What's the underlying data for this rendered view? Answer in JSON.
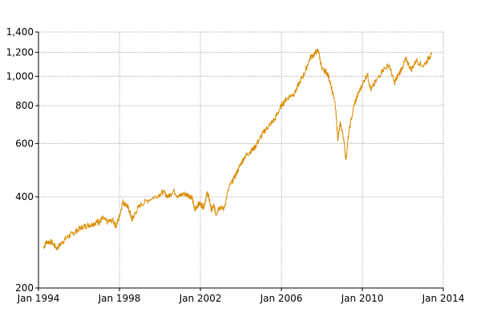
{
  "chart_data": {
    "type": "line",
    "title": "",
    "xlabel": "",
    "ylabel": "",
    "y_scale": "log",
    "ylim": [
      200,
      1400
    ],
    "xlim": [
      "1994-01-01",
      "2014-01-01"
    ],
    "grid": true,
    "line_color": "#d98c00",
    "x_ticks": [
      {
        "label": "Jan 1994",
        "date": "1994-01-01"
      },
      {
        "label": "Jan 1998",
        "date": "1998-01-01"
      },
      {
        "label": "Jan 2002",
        "date": "2002-01-01"
      },
      {
        "label": "Jan 2006",
        "date": "2006-01-01"
      },
      {
        "label": "Jan 2010",
        "date": "2010-01-01"
      },
      {
        "label": "Jan 2014",
        "date": "2014-01-01"
      }
    ],
    "y_ticks": [
      {
        "label": "200",
        "value": 200
      },
      {
        "label": "400",
        "value": 400
      },
      {
        "label": "600",
        "value": 600
      },
      {
        "label": "800",
        "value": 800
      },
      {
        "label": "1,000",
        "value": 1000
      },
      {
        "label": "1,200",
        "value": 1200
      },
      {
        "label": "1,400",
        "value": 1400
      }
    ],
    "series": [
      {
        "points": [
          [
            "1994-04-01",
            272
          ],
          [
            "1994-06-01",
            285
          ],
          [
            "1994-09-01",
            283
          ],
          [
            "1994-12-01",
            270
          ],
          [
            "1995-03-01",
            283
          ],
          [
            "1995-06-01",
            294
          ],
          [
            "1995-09-01",
            302
          ],
          [
            "1995-12-01",
            310
          ],
          [
            "1996-03-01",
            318
          ],
          [
            "1996-06-01",
            322
          ],
          [
            "1996-09-01",
            325
          ],
          [
            "1996-12-01",
            332
          ],
          [
            "1997-01-01",
            328
          ],
          [
            "1997-03-01",
            340
          ],
          [
            "1997-06-01",
            330
          ],
          [
            "1997-09-01",
            335
          ],
          [
            "1997-11-01",
            320
          ],
          [
            "1998-01-01",
            345
          ],
          [
            "1998-03-01",
            385
          ],
          [
            "1998-05-01",
            378
          ],
          [
            "1998-07-01",
            360
          ],
          [
            "1998-08-15",
            335
          ],
          [
            "1998-10-01",
            350
          ],
          [
            "1999-01-01",
            375
          ],
          [
            "1999-06-01",
            390
          ],
          [
            "1999-12-01",
            405
          ],
          [
            "2000-03-01",
            415
          ],
          [
            "2000-06-01",
            400
          ],
          [
            "2000-09-01",
            420
          ],
          [
            "2000-12-01",
            400
          ],
          [
            "2001-03-01",
            410
          ],
          [
            "2001-06-01",
            405
          ],
          [
            "2001-08-01",
            400
          ],
          [
            "2001-09-20",
            360
          ],
          [
            "2001-11-01",
            375
          ],
          [
            "2002-01-01",
            380
          ],
          [
            "2002-03-01",
            370
          ],
          [
            "2002-05-01",
            410
          ],
          [
            "2002-06-01",
            400
          ],
          [
            "2002-07-20",
            360
          ],
          [
            "2002-09-01",
            375
          ],
          [
            "2002-10-10",
            350
          ],
          [
            "2002-12-01",
            370
          ],
          [
            "2003-03-01",
            365
          ],
          [
            "2003-06-01",
            430
          ],
          [
            "2003-09-01",
            460
          ],
          [
            "2003-12-01",
            500
          ],
          [
            "2004-03-01",
            540
          ],
          [
            "2004-06-01",
            560
          ],
          [
            "2004-09-01",
            580
          ],
          [
            "2004-12-01",
            620
          ],
          [
            "2005-03-01",
            660
          ],
          [
            "2005-06-01",
            690
          ],
          [
            "2005-09-01",
            720
          ],
          [
            "2005-12-01",
            780
          ],
          [
            "2006-03-01",
            830
          ],
          [
            "2006-06-01",
            860
          ],
          [
            "2006-09-01",
            880
          ],
          [
            "2006-12-01",
            960
          ],
          [
            "2007-03-01",
            1030
          ],
          [
            "2007-06-01",
            1150
          ],
          [
            "2007-09-01",
            1190
          ],
          [
            "2007-11-01",
            1220
          ],
          [
            "2008-01-01",
            1050
          ],
          [
            "2008-04-01",
            1030
          ],
          [
            "2008-06-01",
            960
          ],
          [
            "2008-09-01",
            800
          ],
          [
            "2008-10-15",
            620
          ],
          [
            "2008-12-01",
            700
          ],
          [
            "2009-02-01",
            620
          ],
          [
            "2009-03-10",
            530
          ],
          [
            "2009-05-01",
            650
          ],
          [
            "2009-08-01",
            800
          ],
          [
            "2009-10-01",
            860
          ],
          [
            "2010-01-01",
            940
          ],
          [
            "2010-04-01",
            1020
          ],
          [
            "2010-06-01",
            900
          ],
          [
            "2010-09-01",
            960
          ],
          [
            "2011-01-01",
            1050
          ],
          [
            "2011-05-01",
            1090
          ],
          [
            "2011-08-01",
            950
          ],
          [
            "2011-10-01",
            1000
          ],
          [
            "2012-01-01",
            1080
          ],
          [
            "2012-03-01",
            1140
          ],
          [
            "2012-06-01",
            1050
          ],
          [
            "2012-09-01",
            1130
          ],
          [
            "2013-01-01",
            1080
          ],
          [
            "2013-05-01",
            1160
          ],
          [
            "2013-06-01",
            1180
          ]
        ]
      }
    ]
  }
}
